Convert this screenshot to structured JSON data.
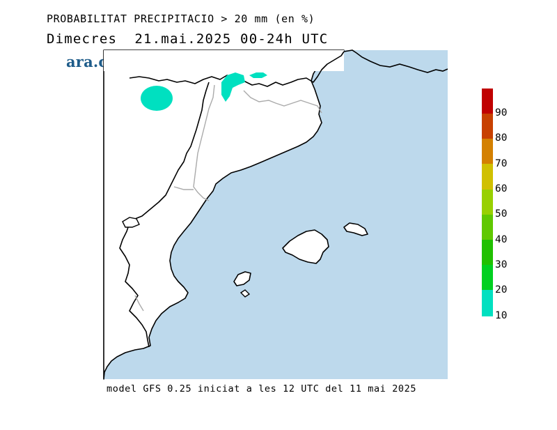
{
  "title_line1": "PROBABILITAT PRECIPITACIO > 20 mm (en %)",
  "title_line2": "Dimecres  21.mai.2025 00-24h UTC",
  "brand": "ara.cat",
  "footer": "model GFS 0.25 iniciat a les 12 UTC del 11 mai 2025",
  "legend": {
    "segments": [
      {
        "from": 10,
        "to": 20,
        "color": "#00e0c0"
      },
      {
        "from": 20,
        "to": 30,
        "color": "#00d020"
      },
      {
        "from": 30,
        "to": 40,
        "color": "#20c000"
      },
      {
        "from": 40,
        "to": 50,
        "color": "#60c800"
      },
      {
        "from": 50,
        "to": 60,
        "color": "#98d000"
      },
      {
        "from": 60,
        "to": 70,
        "color": "#d0c000"
      },
      {
        "from": 70,
        "to": 80,
        "color": "#d48000"
      },
      {
        "from": 80,
        "to": 90,
        "color": "#c84000"
      },
      {
        "from": 90,
        "to": 100,
        "color": "#c00000"
      }
    ],
    "labels": [
      "10",
      "20",
      "30",
      "40",
      "50",
      "60",
      "70",
      "80",
      "90"
    ]
  },
  "colors": {
    "sea": "#bdd9ec",
    "coastline": "#000000",
    "borders": "#aaaaaa",
    "brand": "#1e5c8a",
    "precip_10_20": "#00e0c0"
  },
  "precip_areas": [
    {
      "region": "west of Andorra",
      "probability_range": "10-20"
    },
    {
      "region": "Andorra / Pyrenees",
      "probability_range": "10-20"
    },
    {
      "region": "eastern Pyrenees",
      "probability_range": "10-20"
    }
  ]
}
